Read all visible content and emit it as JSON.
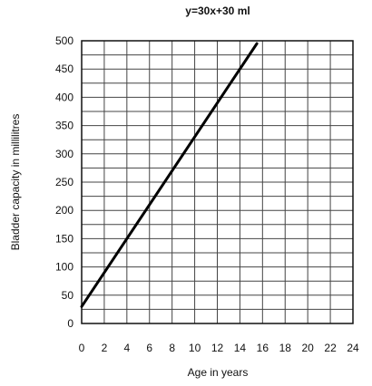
{
  "chart_data": {
    "type": "line",
    "title": "y=30x+30 ml",
    "xlabel": "Age in years",
    "ylabel": "Bladder capacity in millilitres",
    "xlim": [
      0,
      24
    ],
    "ylim": [
      0,
      500
    ],
    "x_ticks": [
      0,
      2,
      4,
      6,
      8,
      10,
      12,
      14,
      16,
      18,
      20,
      22,
      24
    ],
    "y_ticks": [
      0,
      50,
      100,
      150,
      200,
      250,
      300,
      350,
      400,
      450,
      500
    ],
    "x_gridlines": [
      0,
      2,
      4,
      6,
      8,
      10,
      12,
      14,
      16,
      18,
      20,
      22,
      24
    ],
    "y_gridlines": [
      0,
      25,
      50,
      75,
      100,
      125,
      150,
      175,
      200,
      225,
      250,
      275,
      300,
      325,
      350,
      375,
      400,
      425,
      450,
      475,
      500
    ],
    "grid": true,
    "legend": "none",
    "series": [
      {
        "x": [
          0,
          15.5
        ],
        "y": [
          30,
          495
        ],
        "color": "#000000"
      }
    ]
  }
}
